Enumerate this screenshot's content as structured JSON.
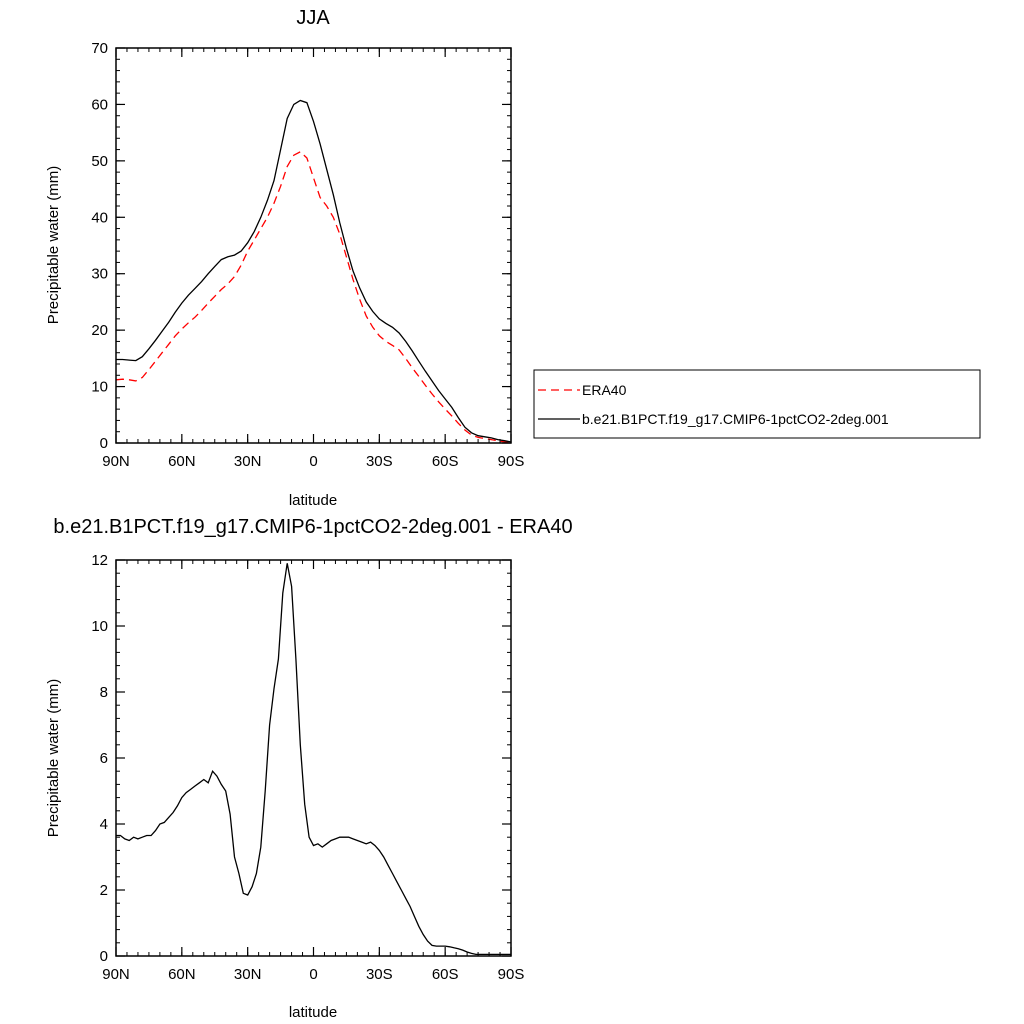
{
  "chart_data": [
    {
      "type": "line",
      "title": "JJA",
      "xlabel": "latitude",
      "ylabel": "Precipitable water (mm)",
      "xlim": [
        90,
        -90
      ],
      "ylim": [
        0,
        70
      ],
      "x_ticks": [
        90,
        60,
        30,
        0,
        -30,
        -60,
        -90
      ],
      "x_tick_labels": [
        "90N",
        "60N",
        "30N",
        "0",
        "30S",
        "60S",
        "90S"
      ],
      "y_ticks": [
        0,
        10,
        20,
        30,
        40,
        50,
        60,
        70
      ],
      "y_tick_labels": [
        "0",
        "10",
        "20",
        "30",
        "40",
        "50",
        "60",
        "70"
      ],
      "grid": false,
      "legend_position": "right",
      "series": [
        {
          "name": "ERA40",
          "color": "#ff0000",
          "style": "dashed",
          "points": [
            [
              90,
              11.2
            ],
            [
              87,
              11.3
            ],
            [
              84,
              11.2
            ],
            [
              81,
              11.0
            ],
            [
              78,
              11.6
            ],
            [
              75,
              13.0
            ],
            [
              72,
              14.5
            ],
            [
              69,
              16.0
            ],
            [
              66,
              17.5
            ],
            [
              63,
              19.0
            ],
            [
              60,
              20.2
            ],
            [
              57,
              21.3
            ],
            [
              54,
              22.3
            ],
            [
              51,
              23.5
            ],
            [
              48,
              24.8
            ],
            [
              45,
              26.0
            ],
            [
              42,
              27.2
            ],
            [
              39,
              28.2
            ],
            [
              36,
              29.5
            ],
            [
              33,
              31.5
            ],
            [
              30,
              34.0
            ],
            [
              27,
              36.0
            ],
            [
              24,
              38.0
            ],
            [
              21,
              40.0
            ],
            [
              18,
              42.5
            ],
            [
              15,
              45.5
            ],
            [
              12,
              49.0
            ],
            [
              9,
              51.0
            ],
            [
              6,
              51.6
            ],
            [
              3,
              50.5
            ],
            [
              0,
              47.0
            ],
            [
              -3,
              43.5
            ],
            [
              -6,
              42.0
            ],
            [
              -9,
              40.0
            ],
            [
              -12,
              37.0
            ],
            [
              -15,
              33.0
            ],
            [
              -18,
              29.0
            ],
            [
              -21,
              25.5
            ],
            [
              -24,
              22.5
            ],
            [
              -27,
              20.5
            ],
            [
              -30,
              19.0
            ],
            [
              -33,
              18.0
            ],
            [
              -36,
              17.3
            ],
            [
              -39,
              16.5
            ],
            [
              -42,
              15.0
            ],
            [
              -45,
              13.3
            ],
            [
              -48,
              11.8
            ],
            [
              -51,
              10.2
            ],
            [
              -54,
              8.7
            ],
            [
              -57,
              7.3
            ],
            [
              -60,
              6.0
            ],
            [
              -63,
              4.8
            ],
            [
              -66,
              3.5
            ],
            [
              -69,
              2.3
            ],
            [
              -72,
              1.4
            ],
            [
              -75,
              1.0
            ],
            [
              -78,
              0.8
            ],
            [
              -81,
              0.6
            ],
            [
              -84,
              0.4
            ],
            [
              -87,
              0.2
            ],
            [
              -90,
              0.1
            ]
          ]
        },
        {
          "name": "b.e21.B1PCT.f19_g17.CMIP6-1pctCO2-2deg.001",
          "color": "#000000",
          "style": "solid",
          "points": [
            [
              90,
              14.8
            ],
            [
              87,
              14.8
            ],
            [
              84,
              14.7
            ],
            [
              81,
              14.6
            ],
            [
              78,
              15.3
            ],
            [
              75,
              16.7
            ],
            [
              72,
              18.2
            ],
            [
              69,
              19.8
            ],
            [
              66,
              21.4
            ],
            [
              63,
              23.2
            ],
            [
              60,
              24.8
            ],
            [
              57,
              26.2
            ],
            [
              54,
              27.4
            ],
            [
              51,
              28.6
            ],
            [
              48,
              30.0
            ],
            [
              45,
              31.3
            ],
            [
              42,
              32.5
            ],
            [
              39,
              33.0
            ],
            [
              36,
              33.3
            ],
            [
              33,
              34.0
            ],
            [
              30,
              35.5
            ],
            [
              27,
              37.5
            ],
            [
              24,
              40.0
            ],
            [
              21,
              43.0
            ],
            [
              18,
              46.5
            ],
            [
              15,
              52.0
            ],
            [
              12,
              57.5
            ],
            [
              9,
              60.0
            ],
            [
              6,
              60.7
            ],
            [
              3,
              60.3
            ],
            [
              0,
              57.0
            ],
            [
              -3,
              53.0
            ],
            [
              -6,
              48.5
            ],
            [
              -9,
              44.0
            ],
            [
              -12,
              39.0
            ],
            [
              -15,
              34.5
            ],
            [
              -18,
              30.5
            ],
            [
              -21,
              27.5
            ],
            [
              -24,
              25.0
            ],
            [
              -27,
              23.3
            ],
            [
              -30,
              22.0
            ],
            [
              -33,
              21.2
            ],
            [
              -36,
              20.5
            ],
            [
              -39,
              19.5
            ],
            [
              -42,
              18.0
            ],
            [
              -45,
              16.3
            ],
            [
              -48,
              14.5
            ],
            [
              -51,
              12.7
            ],
            [
              -54,
              11.0
            ],
            [
              -57,
              9.3
            ],
            [
              -60,
              7.8
            ],
            [
              -63,
              6.3
            ],
            [
              -66,
              4.5
            ],
            [
              -69,
              2.8
            ],
            [
              -72,
              1.8
            ],
            [
              -75,
              1.3
            ],
            [
              -78,
              1.1
            ],
            [
              -81,
              0.9
            ],
            [
              -84,
              0.6
            ],
            [
              -87,
              0.4
            ],
            [
              -90,
              0.2
            ]
          ]
        }
      ]
    },
    {
      "type": "line",
      "title": "b.e21.B1PCT.f19_g17.CMIP6-1pctCO2-2deg.001 - ERA40",
      "xlabel": "latitude",
      "ylabel": "Precipitable water (mm)",
      "xlim": [
        90,
        -90
      ],
      "ylim": [
        0,
        12
      ],
      "x_ticks": [
        90,
        60,
        30,
        0,
        -30,
        -60,
        -90
      ],
      "x_tick_labels": [
        "90N",
        "60N",
        "30N",
        "0",
        "30S",
        "60S",
        "90S"
      ],
      "y_ticks": [
        0,
        2,
        4,
        6,
        8,
        10,
        12
      ],
      "y_tick_labels": [
        "0",
        "2",
        "4",
        "6",
        "8",
        "10",
        "12"
      ],
      "grid": false,
      "series": [
        {
          "color": "#000000",
          "style": "solid",
          "points": [
            [
              90,
              3.65
            ],
            [
              88,
              3.65
            ],
            [
              86,
              3.55
            ],
            [
              84,
              3.5
            ],
            [
              82,
              3.6
            ],
            [
              80,
              3.55
            ],
            [
              78,
              3.6
            ],
            [
              76,
              3.65
            ],
            [
              74,
              3.65
            ],
            [
              72,
              3.8
            ],
            [
              70,
              4.0
            ],
            [
              68,
              4.05
            ],
            [
              66,
              4.2
            ],
            [
              64,
              4.35
            ],
            [
              62,
              4.55
            ],
            [
              60,
              4.8
            ],
            [
              58,
              4.95
            ],
            [
              56,
              5.05
            ],
            [
              54,
              5.15
            ],
            [
              52,
              5.25
            ],
            [
              50,
              5.35
            ],
            [
              48,
              5.25
            ],
            [
              46,
              5.6
            ],
            [
              44,
              5.45
            ],
            [
              42,
              5.2
            ],
            [
              40,
              5.0
            ],
            [
              38,
              4.3
            ],
            [
              36,
              3.0
            ],
            [
              34,
              2.5
            ],
            [
              32,
              1.9
            ],
            [
              30,
              1.85
            ],
            [
              28,
              2.1
            ],
            [
              26,
              2.5
            ],
            [
              24,
              3.3
            ],
            [
              22,
              5.0
            ],
            [
              20,
              7.0
            ],
            [
              18,
              8.1
            ],
            [
              16,
              9.0
            ],
            [
              14,
              11.0
            ],
            [
              12,
              11.9
            ],
            [
              10,
              11.2
            ],
            [
              8,
              9.0
            ],
            [
              6,
              6.4
            ],
            [
              4,
              4.6
            ],
            [
              2,
              3.6
            ],
            [
              0,
              3.35
            ],
            [
              -2,
              3.4
            ],
            [
              -4,
              3.3
            ],
            [
              -6,
              3.4
            ],
            [
              -8,
              3.5
            ],
            [
              -10,
              3.55
            ],
            [
              -12,
              3.6
            ],
            [
              -14,
              3.6
            ],
            [
              -16,
              3.6
            ],
            [
              -18,
              3.55
            ],
            [
              -20,
              3.5
            ],
            [
              -22,
              3.45
            ],
            [
              -24,
              3.4
            ],
            [
              -26,
              3.45
            ],
            [
              -28,
              3.35
            ],
            [
              -30,
              3.2
            ],
            [
              -32,
              3.0
            ],
            [
              -34,
              2.75
            ],
            [
              -36,
              2.5
            ],
            [
              -38,
              2.25
            ],
            [
              -40,
              2.0
            ],
            [
              -42,
              1.75
            ],
            [
              -44,
              1.5
            ],
            [
              -46,
              1.2
            ],
            [
              -48,
              0.9
            ],
            [
              -50,
              0.65
            ],
            [
              -52,
              0.45
            ],
            [
              -54,
              0.32
            ],
            [
              -56,
              0.3
            ],
            [
              -58,
              0.3
            ],
            [
              -60,
              0.3
            ],
            [
              -62,
              0.28
            ],
            [
              -64,
              0.25
            ],
            [
              -66,
              0.22
            ],
            [
              -68,
              0.18
            ],
            [
              -70,
              0.12
            ],
            [
              -72,
              0.08
            ],
            [
              -74,
              0.05
            ],
            [
              -76,
              0.05
            ],
            [
              -78,
              0.05
            ],
            [
              -80,
              0.05
            ],
            [
              -82,
              0.05
            ],
            [
              -84,
              0.05
            ],
            [
              -86,
              0.05
            ],
            [
              -88,
              0.05
            ],
            [
              -90,
              0.05
            ]
          ]
        }
      ]
    }
  ]
}
